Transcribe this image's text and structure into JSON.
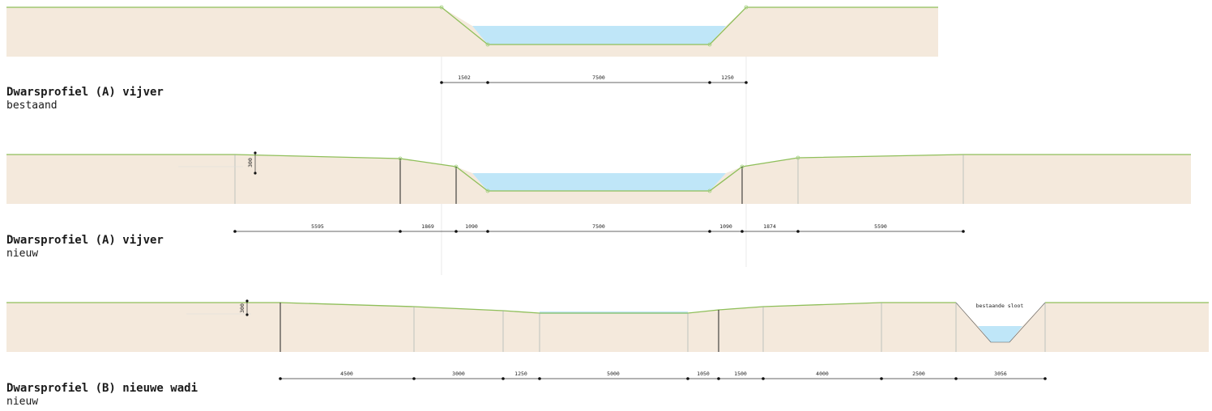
{
  "colors": {
    "ground": "#f4e9dc",
    "water": "#bfe6f8",
    "surface": "#8fbf5a"
  },
  "sections": [
    {
      "title": "Dwarsprofiel (A) vijver",
      "subtitle": "bestaand",
      "dimensions": [
        "1502",
        "7500",
        "1250"
      ]
    },
    {
      "title": "Dwarsprofiel (A) vijver",
      "subtitle": "nieuw",
      "height_label": "300",
      "dimensions": [
        "5595",
        "1869",
        "1090",
        "7500",
        "1090",
        "1874",
        "5590"
      ]
    },
    {
      "title": "Dwarsprofiel (B) nieuwe wadi",
      "subtitle": "nieuw",
      "height_label": "300",
      "note": "bestaande sloot",
      "dimensions": [
        "4500",
        "3000",
        "1250",
        "5000",
        "1050",
        "1500",
        "4000",
        "2500",
        "3056"
      ]
    }
  ]
}
